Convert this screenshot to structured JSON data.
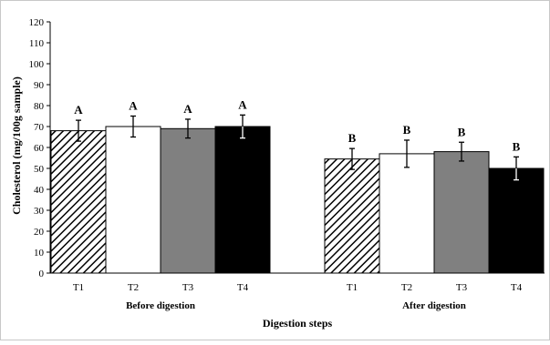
{
  "chart_data": {
    "type": "bar",
    "xlabel": "Digestion steps",
    "ylabel": "Cholesterol (mg/100g sample)",
    "ylim": [
      0,
      120
    ],
    "yticks": [
      0,
      10,
      20,
      30,
      40,
      50,
      60,
      70,
      80,
      90,
      100,
      110,
      120
    ],
    "grid": false,
    "groups": [
      {
        "name": "Before digestion",
        "bars": [
          {
            "category": "T1",
            "value": 68,
            "error": 5,
            "letter": "A",
            "pattern": "hatched"
          },
          {
            "category": "T2",
            "value": 70,
            "error": 5,
            "letter": "A",
            "pattern": "white"
          },
          {
            "category": "T3",
            "value": 69,
            "error": 4.5,
            "letter": "A",
            "pattern": "gray"
          },
          {
            "category": "T4",
            "value": 70,
            "error": 5.5,
            "letter": "A",
            "pattern": "black"
          }
        ]
      },
      {
        "name": "After digestion",
        "bars": [
          {
            "category": "T1",
            "value": 54.5,
            "error": 5,
            "letter": "B",
            "pattern": "hatched"
          },
          {
            "category": "T2",
            "value": 57,
            "error": 6.5,
            "letter": "B",
            "pattern": "white"
          },
          {
            "category": "T3",
            "value": 58,
            "error": 4.5,
            "letter": "B",
            "pattern": "gray"
          },
          {
            "category": "T4",
            "value": 50,
            "error": 5.5,
            "letter": "B",
            "pattern": "black"
          }
        ]
      }
    ]
  },
  "colors": {
    "hatched": "#000000",
    "white": "#ffffff",
    "gray": "#808080",
    "black": "#000000",
    "frame": "#c8c8c8"
  }
}
